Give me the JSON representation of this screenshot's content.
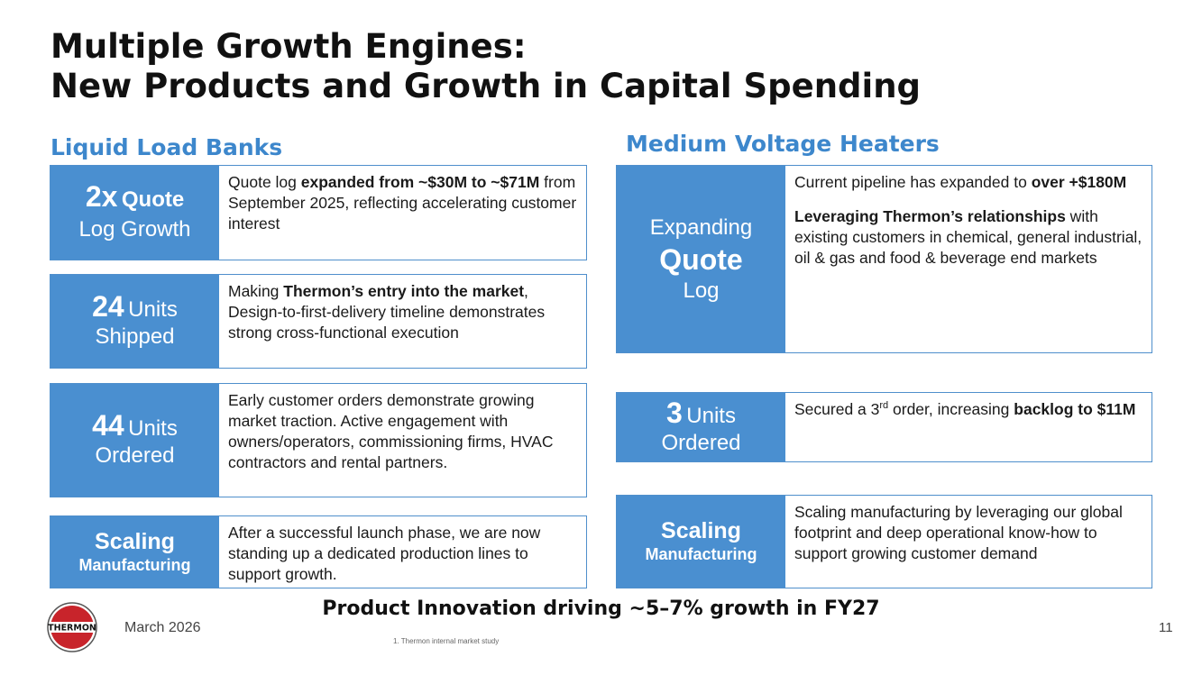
{
  "title": {
    "line1": "Multiple Growth Engines:",
    "line2": "New Products and Growth in Capital Spending"
  },
  "left_column": {
    "heading": "Liquid Load Banks",
    "cards": [
      {
        "big": "2x",
        "big_suffix": "Quote",
        "sub": "Log Growth",
        "text_pre": "Quote log ",
        "text_bold": "expanded from ~$30M to ~$71M",
        "text_post": " from September 2025, reflecting accelerating customer interest"
      },
      {
        "big": "24",
        "big_suffix": "Units",
        "sub": "Shipped",
        "text_pre": "Making ",
        "text_bold": "Thermon’s entry into the market",
        "text_post": ", Design-to-first-delivery timeline demonstrates strong cross-functional execution"
      },
      {
        "big": "44",
        "big_suffix": "Units",
        "sub": "Ordered",
        "text_pre": "Early customer orders demonstrate growing market traction. Active engagement with owners/operators, commissioning firms, HVAC contractors and rental partners.",
        "text_bold": "",
        "text_post": ""
      },
      {
        "line1": "Scaling",
        "line2": "Manufacturing",
        "text_pre": "After a successful launch phase, we are now standing up a dedicated production lines to support growth.",
        "text_bold": "",
        "text_post": ""
      }
    ]
  },
  "right_column": {
    "heading": "Medium Voltage Heaters",
    "cards": [
      {
        "line1": "Expanding",
        "line2": "Quote",
        "line3": "Log",
        "p1_pre": "Current pipeline has expanded to ",
        "p1_bold": "over +$180M",
        "p2_bold": "Leveraging Thermon’s relationships",
        "p2_post": " with existing customers in chemical, general industrial, oil & gas and food & beverage end markets"
      },
      {
        "big": "3",
        "big_suffix": "Units",
        "sub": "Ordered",
        "text_pre": "Secured a 3",
        "text_sup": "rd",
        "text_mid": " order, increasing ",
        "text_bold": "backlog to $11M"
      },
      {
        "line1": "Scaling",
        "line2": "Manufacturing",
        "text_pre": "Scaling manufacturing by leveraging our global footprint and deep operational know-how to support growing customer demand"
      }
    ]
  },
  "bottom_line": "Product Innovation driving ~5–7% growth in FY27",
  "footer": {
    "logo_text": "THERMON",
    "date": "March 2026",
    "footnote": "1.     Thermon internal market study",
    "page_number": "11"
  },
  "colors": {
    "accent_blue": "#4a8fd0",
    "heading_blue": "#3d87cc",
    "logo_red": "#c8242b"
  }
}
